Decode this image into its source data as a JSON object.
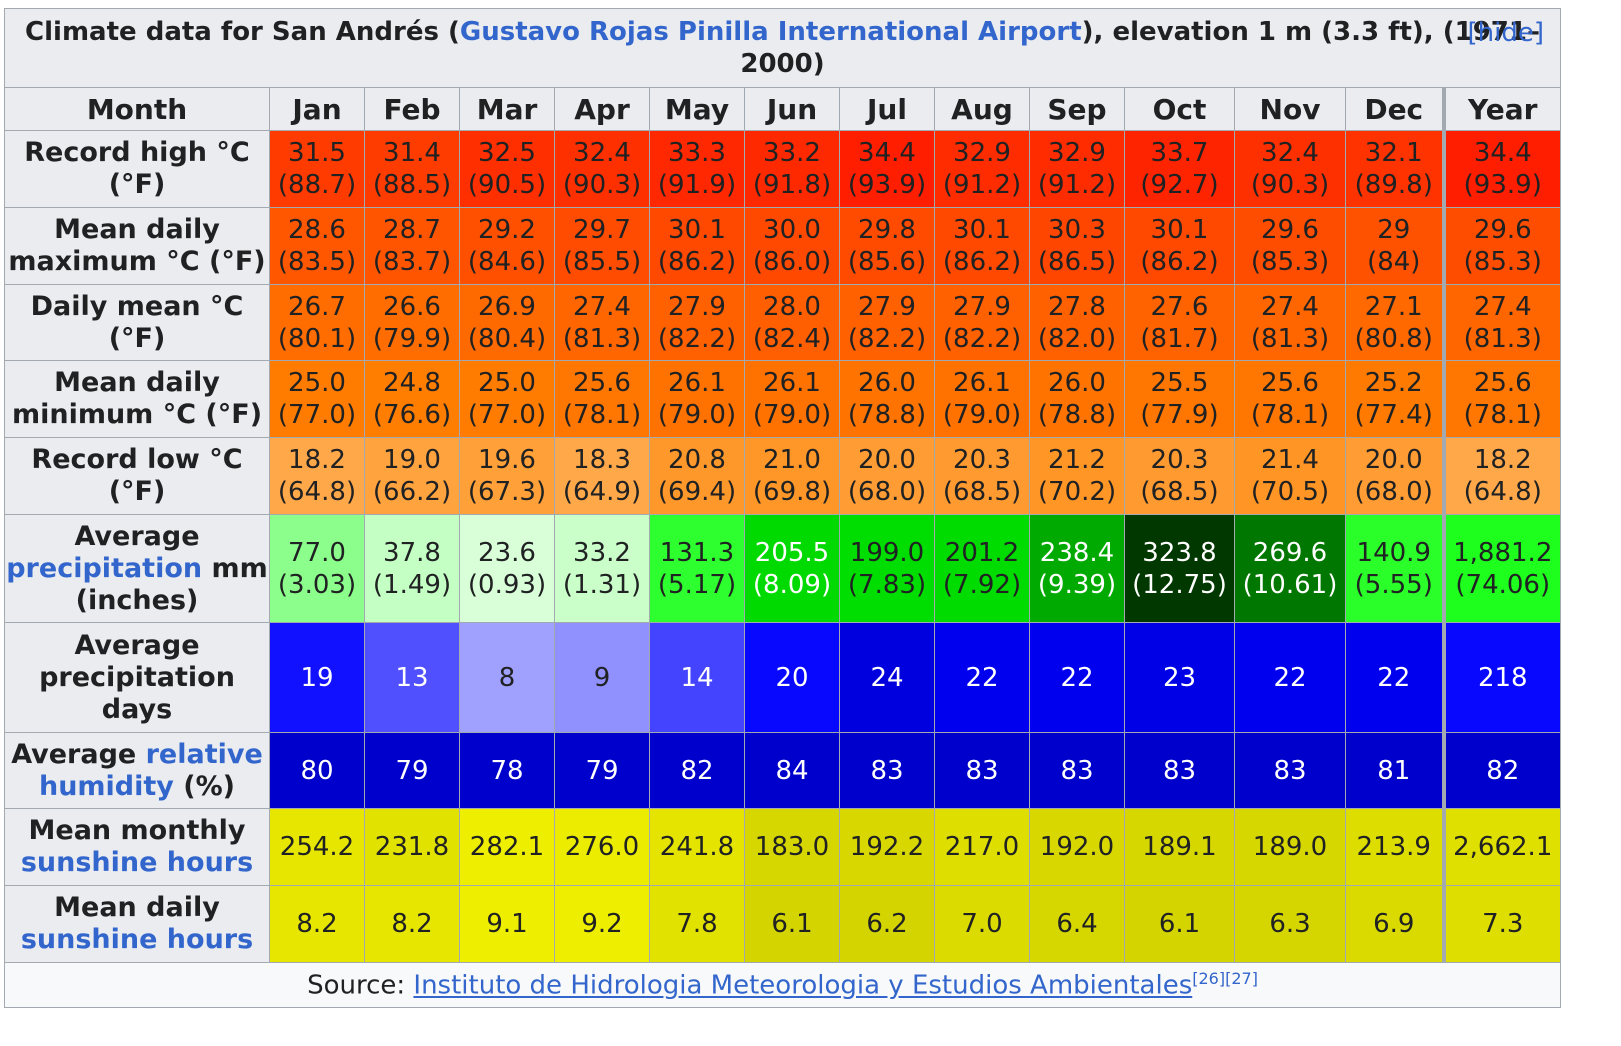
{
  "table": {
    "caption_prefix": "Climate data for San Andrés (",
    "caption_link": "Gustavo Rojas Pinilla International Airport",
    "caption_suffix": "), elevation 1 m (3.3 ft), (1971–2000)",
    "hide_label": "[hide]",
    "columns": [
      "Month",
      "Jan",
      "Feb",
      "Mar",
      "Apr",
      "May",
      "Jun",
      "Jul",
      "Aug",
      "Sep",
      "Oct",
      "Nov",
      "Dec",
      "Year"
    ],
    "rows": [
      {
        "id": "record-high",
        "label": "Record high °C (°F)",
        "label_parts": [
          {
            "t": "Record high °C (°F)"
          }
        ],
        "values": [
          "31.5 (88.7)",
          "31.4 (88.5)",
          "32.5 (90.5)",
          "32.4 (90.3)",
          "33.3 (91.9)",
          "33.2 (91.8)",
          "34.4 (93.9)",
          "32.9 (91.2)",
          "32.9 (91.2)",
          "33.7 (92.7)",
          "32.4 (90.3)",
          "32.1 (89.8)",
          "34.4 (93.9)"
        ],
        "colors": [
          "#ff3b00",
          "#ff3c00",
          "#ff2f00",
          "#ff3000",
          "#ff2800",
          "#ff2900",
          "#ff1e00",
          "#ff2c00",
          "#ff2c00",
          "#ff2400",
          "#ff3000",
          "#ff3300",
          "#ff1e00"
        ],
        "text_color": "#202122"
      },
      {
        "id": "mean-max",
        "label": "Mean daily maximum °C (°F)",
        "label_parts": [
          {
            "t": "Mean daily maximum °C (°F)"
          }
        ],
        "values": [
          "28.6 (83.5)",
          "28.7 (83.7)",
          "29.2 (84.6)",
          "29.7 (85.5)",
          "30.1 (86.2)",
          "30.0 (86.0)",
          "29.8 (85.6)",
          "30.1 (86.2)",
          "30.3 (86.5)",
          "30.1 (86.2)",
          "29.6 (85.3)",
          "29 (84)",
          "29.6 (85.3)"
        ],
        "colors": [
          "#ff5600",
          "#ff5500",
          "#ff5000",
          "#ff4c00",
          "#ff4800",
          "#ff4900",
          "#ff4b00",
          "#ff4800",
          "#ff4600",
          "#ff4800",
          "#ff4d00",
          "#ff5200",
          "#ff4d00"
        ],
        "text_color": "#202122"
      },
      {
        "id": "daily-mean",
        "label": "Daily mean °C (°F)",
        "label_parts": [
          {
            "t": "Daily mean °C (°F)"
          }
        ],
        "values": [
          "26.7 (80.1)",
          "26.6 (79.9)",
          "26.9 (80.4)",
          "27.4 (81.3)",
          "27.9 (82.2)",
          "28.0 (82.4)",
          "27.9 (82.2)",
          "27.9 (82.2)",
          "27.8 (82.0)",
          "27.6 (81.7)",
          "27.4 (81.3)",
          "27.1 (80.8)",
          "27.4 (81.3)"
        ],
        "colors": [
          "#ff6c00",
          "#ff6d00",
          "#ff6a00",
          "#ff6600",
          "#ff6000",
          "#ff5f00",
          "#ff6000",
          "#ff6000",
          "#ff6100",
          "#ff6300",
          "#ff6600",
          "#ff6900",
          "#ff6600"
        ],
        "text_color": "#202122"
      },
      {
        "id": "mean-min",
        "label": "Mean daily minimum °C (°F)",
        "label_parts": [
          {
            "t": "Mean daily minimum °C (°F)"
          }
        ],
        "values": [
          "25.0 (77.0)",
          "24.8 (76.6)",
          "25.0 (77.0)",
          "25.6 (78.1)",
          "26.1 (79.0)",
          "26.1 (79.0)",
          "26.0 (78.8)",
          "26.1 (79.0)",
          "26.0 (78.8)",
          "25.5 (77.9)",
          "25.6 (78.1)",
          "25.2 (77.4)",
          "25.6 (78.1)"
        ],
        "colors": [
          "#ff7c00",
          "#ff7e00",
          "#ff7c00",
          "#ff7600",
          "#ff7200",
          "#ff7200",
          "#ff7300",
          "#ff7200",
          "#ff7300",
          "#ff7700",
          "#ff7600",
          "#ff7a00",
          "#ff7600"
        ],
        "text_color": "#202122"
      },
      {
        "id": "record-low",
        "label": "Record low °C (°F)",
        "label_parts": [
          {
            "t": "Record low °C (°F)"
          }
        ],
        "values": [
          "18.2 (64.8)",
          "19.0 (66.2)",
          "19.6 (67.3)",
          "18.3 (64.9)",
          "20.8 (69.4)",
          "21.0 (69.8)",
          "20.0 (68.0)",
          "20.3 (68.5)",
          "21.2 (70.2)",
          "20.3 (68.5)",
          "21.4 (70.5)",
          "20.0 (68.0)",
          "18.2 (64.8)"
        ],
        "colors": [
          "#ffa84a",
          "#ffa33f",
          "#ffa038",
          "#ffa849",
          "#ff982b",
          "#ff9728",
          "#ff9c33",
          "#ff9a30",
          "#ff9626",
          "#ff9a30",
          "#ff9524",
          "#ff9c33",
          "#ffa84a"
        ],
        "text_color": "#202122"
      },
      {
        "id": "precip",
        "label": "Average precipitation mm (inches)",
        "label_parts": [
          {
            "t": "Average "
          },
          {
            "t": "precipitation",
            "link": true
          },
          {
            "t": " mm (inches)"
          }
        ],
        "values": [
          "77.0 (3.03)",
          "37.8 (1.49)",
          "23.6 (0.93)",
          "33.2 (1.31)",
          "131.3 (5.17)",
          "205.5 (8.09)",
          "199.0 (7.83)",
          "201.2 (7.92)",
          "238.4 (9.39)",
          "323.8 (12.75)",
          "269.6 (10.61)",
          "140.9 (5.55)",
          "1,881.2 (74.06)"
        ],
        "colors": [
          "#8bfe8b",
          "#c4ffc4",
          "#d8ffd8",
          "#caffca",
          "#2eff2e",
          "#00da00",
          "#00dd00",
          "#00dc00",
          "#00aa00",
          "#003800",
          "#007700",
          "#2aff2a",
          "#1eff1e"
        ],
        "text_colors": [
          "#202122",
          "#202122",
          "#202122",
          "#202122",
          "#202122",
          "#ffffff",
          "#202122",
          "#202122",
          "#ffffff",
          "#ffffff",
          "#ffffff",
          "#202122",
          "#202122"
        ]
      },
      {
        "id": "precip-days",
        "label": "Average precipitation days",
        "label_parts": [
          {
            "t": "Average precipitation days"
          }
        ],
        "values": [
          "19",
          "13",
          "8",
          "9",
          "14",
          "20",
          "24",
          "22",
          "22",
          "23",
          "22",
          "22",
          "218"
        ],
        "colors": [
          "#1111ff",
          "#5050ff",
          "#a0a0ff",
          "#9090ff",
          "#4444ff",
          "#0808ff",
          "#0000de",
          "#0000ee",
          "#0000ee",
          "#0000e6",
          "#0000ee",
          "#0000ee",
          "#0808ff"
        ],
        "text_colors": [
          "#ffffff",
          "#ffffff",
          "#202122",
          "#202122",
          "#ffffff",
          "#ffffff",
          "#ffffff",
          "#ffffff",
          "#ffffff",
          "#ffffff",
          "#ffffff",
          "#ffffff",
          "#ffffff"
        ]
      },
      {
        "id": "humidity",
        "label": "Average relative humidity (%)",
        "label_parts": [
          {
            "t": "Average "
          },
          {
            "t": "relative humidity",
            "link": true
          },
          {
            "t": " (%)"
          }
        ],
        "values": [
          "80",
          "79",
          "78",
          "79",
          "82",
          "84",
          "83",
          "83",
          "83",
          "83",
          "83",
          "81",
          "82"
        ],
        "colors": [
          "#0000cc",
          "#0000cc",
          "#0000cc",
          "#0000cc",
          "#0000cc",
          "#0000cc",
          "#0000cc",
          "#0000cc",
          "#0000cc",
          "#0000cc",
          "#0000cc",
          "#0000cc",
          "#0000cc"
        ],
        "text_color": "#ffffff"
      },
      {
        "id": "sun-monthly",
        "label": "Mean monthly sunshine hours",
        "label_parts": [
          {
            "t": "Mean monthly "
          },
          {
            "t": "sunshine hours",
            "link": true
          }
        ],
        "values": [
          "254.2",
          "231.8",
          "282.1",
          "276.0",
          "241.8",
          "183.0",
          "192.2",
          "217.0",
          "192.0",
          "189.1",
          "189.0",
          "213.9",
          "2,662.1"
        ],
        "colors": [
          "#e6e600",
          "#e2e200",
          "#eeee00",
          "#ecec00",
          "#e4e400",
          "#d6d600",
          "#d8d800",
          "#dede00",
          "#d8d800",
          "#d7d700",
          "#d7d700",
          "#dddd00",
          "#e0e000"
        ],
        "text_color": "#202122"
      },
      {
        "id": "sun-daily",
        "label": "Mean daily sunshine hours",
        "label_parts": [
          {
            "t": "Mean daily "
          },
          {
            "t": "sunshine hours",
            "link": true
          }
        ],
        "values": [
          "8.2",
          "8.2",
          "9.1",
          "9.2",
          "7.8",
          "6.1",
          "6.2",
          "7.0",
          "6.4",
          "6.1",
          "6.3",
          "6.9",
          "7.3"
        ],
        "colors": [
          "#e6e600",
          "#e6e600",
          "#eeee00",
          "#eeee00",
          "#e2e200",
          "#d4d400",
          "#d4d400",
          "#dbdb00",
          "#d6d600",
          "#d4d400",
          "#d5d500",
          "#dada00",
          "#dede00"
        ],
        "text_color": "#202122"
      }
    ],
    "source_prefix": "Source: ",
    "source_link": "Instituto de Hidrologia Meteorologia y Estudios Ambientales",
    "source_refs": "[26][27]"
  }
}
